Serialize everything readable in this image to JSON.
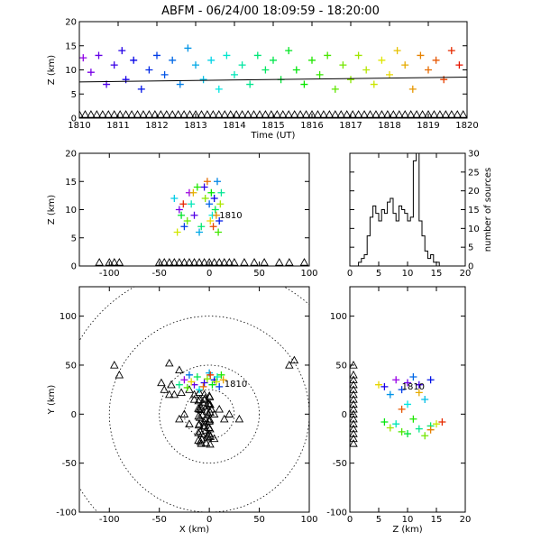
{
  "title": "ABFM - 06/24/00 18:09:59 - 18:20:00",
  "chart_data": [
    {
      "id": "time_height",
      "type": "scatter",
      "xlabel": "Time (UT)",
      "ylabel": "Z (km)",
      "xlim": [
        1810,
        1820
      ],
      "ylim": [
        0,
        20
      ],
      "xticks": [
        "1810",
        "1811",
        "1812",
        "1813",
        "1814",
        "1815",
        "1816",
        "1817",
        "1818",
        "1819",
        "1820"
      ],
      "yticks": [
        "0",
        "5",
        "10",
        "15",
        "20"
      ],
      "colormap": "rainbow (time)",
      "trend_line": {
        "x": [
          1810,
          1820
        ],
        "y": [
          7.5,
          8.5
        ]
      },
      "ground_markers": "triangles along Z=0",
      "points": [
        [
          1810.1,
          12.5
        ],
        [
          1810.3,
          9.5
        ],
        [
          1810.5,
          13
        ],
        [
          1810.7,
          7
        ],
        [
          1810.9,
          11
        ],
        [
          1811.1,
          14
        ],
        [
          1811.2,
          8
        ],
        [
          1811.4,
          12
        ],
        [
          1811.6,
          6
        ],
        [
          1811.8,
          10
        ],
        [
          1812.0,
          13
        ],
        [
          1812.2,
          9
        ],
        [
          1812.4,
          12
        ],
        [
          1812.6,
          7
        ],
        [
          1812.8,
          14.5
        ],
        [
          1813.0,
          11
        ],
        [
          1813.2,
          8
        ],
        [
          1813.4,
          12
        ],
        [
          1813.6,
          6
        ],
        [
          1813.8,
          13
        ],
        [
          1814.0,
          9
        ],
        [
          1814.2,
          11
        ],
        [
          1814.4,
          7
        ],
        [
          1814.6,
          13
        ],
        [
          1814.8,
          10
        ],
        [
          1815.0,
          12
        ],
        [
          1815.2,
          8
        ],
        [
          1815.4,
          14
        ],
        [
          1815.6,
          10
        ],
        [
          1815.8,
          7
        ],
        [
          1816.0,
          12
        ],
        [
          1816.2,
          9
        ],
        [
          1816.4,
          13
        ],
        [
          1816.6,
          6
        ],
        [
          1816.8,
          11
        ],
        [
          1817.0,
          8
        ],
        [
          1817.2,
          13
        ],
        [
          1817.4,
          10
        ],
        [
          1817.6,
          7
        ],
        [
          1817.8,
          12
        ],
        [
          1818.0,
          9
        ],
        [
          1818.2,
          14
        ],
        [
          1818.4,
          11
        ],
        [
          1818.6,
          6
        ],
        [
          1818.8,
          13
        ],
        [
          1819.0,
          10
        ],
        [
          1819.2,
          12
        ],
        [
          1819.4,
          8
        ],
        [
          1819.6,
          14
        ],
        [
          1819.8,
          11
        ]
      ]
    },
    {
      "id": "x_height",
      "type": "scatter",
      "ylabel": "Z (km)",
      "xlim": [
        -130,
        100
      ],
      "ylim": [
        0,
        20
      ],
      "xticks": [
        "-100",
        "-50",
        "0",
        "50",
        "100"
      ],
      "yticks": [
        "0",
        "5",
        "10",
        "15",
        "20"
      ],
      "annotation": "1810",
      "points": [
        [
          -20,
          13
        ],
        [
          -30,
          10
        ],
        [
          -15,
          9
        ],
        [
          -5,
          14
        ],
        [
          5,
          12
        ],
        [
          10,
          8
        ],
        [
          -25,
          7
        ],
        [
          0,
          11
        ],
        [
          8,
          15
        ],
        [
          -10,
          6
        ],
        [
          -35,
          12
        ],
        [
          3,
          9
        ],
        [
          -18,
          11
        ],
        [
          12,
          13
        ],
        [
          -8,
          7
        ],
        [
          6,
          10
        ],
        [
          -28,
          9
        ],
        [
          2,
          13
        ],
        [
          -12,
          14
        ],
        [
          9,
          6
        ],
        [
          -22,
          8
        ],
        [
          -4,
          12
        ],
        [
          11,
          11
        ],
        [
          -32,
          6
        ],
        [
          1,
          8
        ],
        [
          -16,
          13
        ],
        [
          7,
          9
        ],
        [
          -2,
          15
        ],
        [
          4,
          7
        ],
        [
          -26,
          11
        ]
      ],
      "ground_x": [
        -110,
        -100,
        -95,
        -90,
        -50,
        -45,
        -40,
        -35,
        -30,
        -25,
        -20,
        -15,
        -10,
        -5,
        0,
        5,
        10,
        15,
        20,
        25,
        35,
        45,
        55,
        70,
        80,
        95
      ]
    },
    {
      "id": "height_histogram",
      "type": "bar",
      "xlabel": "",
      "ylabel": "number of sources",
      "xlim": [
        0,
        20
      ],
      "ylim": [
        0,
        30
      ],
      "xticks": [
        "0",
        "5",
        "10",
        "15",
        "20"
      ],
      "yticks": [
        "0",
        "5",
        "10",
        "15",
        "20",
        "25",
        "30"
      ],
      "bin_width": 0.5,
      "bin_start": 0,
      "values": [
        0,
        0,
        0,
        1,
        2,
        3,
        8,
        13,
        16,
        14,
        12,
        15,
        14,
        17,
        18,
        14,
        12,
        16,
        15,
        14,
        12,
        13,
        28,
        30,
        12,
        8,
        4,
        2,
        3,
        1,
        1,
        0,
        0,
        0,
        0,
        0,
        0,
        0,
        0,
        0
      ]
    },
    {
      "id": "plan_view",
      "type": "scatter",
      "xlabel": "X (km)",
      "ylabel": "Y (km)",
      "xlim": [
        -130,
        100
      ],
      "ylim": [
        -100,
        130
      ],
      "xticks": [
        "-100",
        "-50",
        "0",
        "50",
        "100"
      ],
      "yticks": [
        "-100",
        "-50",
        "0",
        "50",
        "100"
      ],
      "range_rings_km": [
        25,
        50,
        100,
        150
      ],
      "annotation": "1810",
      "points": [
        [
          -25,
          35
        ],
        [
          -15,
          30
        ],
        [
          -5,
          32
        ],
        [
          5,
          35
        ],
        [
          10,
          28
        ],
        [
          -20,
          40
        ],
        [
          0,
          42
        ],
        [
          -10,
          25
        ],
        [
          8,
          38
        ],
        [
          -30,
          30
        ],
        [
          -12,
          38
        ],
        [
          3,
          30
        ],
        [
          12,
          40
        ],
        [
          -22,
          27
        ],
        [
          -2,
          36
        ],
        [
          7,
          33
        ],
        [
          -18,
          33
        ],
        [
          14,
          35
        ],
        [
          -6,
          28
        ],
        [
          1,
          40
        ]
      ],
      "stations": [
        [
          -95,
          50
        ],
        [
          -90,
          40
        ],
        [
          -30,
          45
        ],
        [
          -38,
          30
        ],
        [
          -45,
          25
        ],
        [
          -35,
          20
        ],
        [
          -28,
          22
        ],
        [
          -20,
          25
        ],
        [
          -15,
          20
        ],
        [
          -10,
          22
        ],
        [
          -5,
          15
        ],
        [
          0,
          10
        ],
        [
          2,
          5
        ],
        [
          5,
          0
        ],
        [
          0,
          -5
        ],
        [
          -5,
          -12
        ],
        [
          0,
          -20
        ],
        [
          5,
          -25
        ],
        [
          -10,
          5
        ],
        [
          -15,
          15
        ],
        [
          -25,
          0
        ],
        [
          -30,
          -5
        ],
        [
          -20,
          -10
        ],
        [
          10,
          5
        ],
        [
          15,
          -5
        ],
        [
          20,
          0
        ],
        [
          30,
          -5
        ],
        [
          -40,
          20
        ],
        [
          -48,
          32
        ],
        [
          -8,
          -30
        ],
        [
          80,
          50
        ],
        [
          85,
          55
        ],
        [
          -40,
          52
        ]
      ]
    },
    {
      "id": "z_y",
      "type": "scatter",
      "xlabel": "Z (km)",
      "xlim": [
        0,
        20
      ],
      "ylim": [
        -100,
        130
      ],
      "xticks": [
        "0",
        "5",
        "10",
        "15",
        "20"
      ],
      "yticks": [
        "-100",
        "-50",
        "0",
        "50",
        "100"
      ],
      "annotation": "1810",
      "points": [
        [
          8,
          35
        ],
        [
          10,
          32
        ],
        [
          12,
          30
        ],
        [
          6,
          28
        ],
        [
          14,
          35
        ],
        [
          9,
          25
        ],
        [
          11,
          38
        ],
        [
          7,
          20
        ],
        [
          13,
          15
        ],
        [
          10,
          10
        ],
        [
          8,
          -10
        ],
        [
          12,
          -15
        ],
        [
          14,
          -12
        ],
        [
          10,
          -20
        ],
        [
          6,
          -8
        ],
        [
          11,
          -5
        ],
        [
          9,
          -18
        ],
        [
          13,
          -22
        ],
        [
          7,
          -14
        ],
        [
          15,
          -10
        ],
        [
          5,
          30
        ],
        [
          12,
          22
        ],
        [
          14,
          -16
        ],
        [
          9,
          5
        ],
        [
          16,
          -8
        ]
      ],
      "ground_y": [
        -30,
        -25,
        -20,
        -15,
        -10,
        -5,
        0,
        5,
        10,
        15,
        20,
        25,
        30,
        35,
        40,
        50
      ]
    }
  ]
}
